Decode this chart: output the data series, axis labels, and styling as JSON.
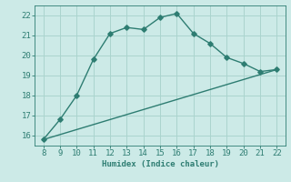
{
  "title": "",
  "xlabel": "Humidex (Indice chaleur)",
  "ylabel": "",
  "bg_color": "#cceae7",
  "line_color": "#2e7d72",
  "grid_color": "#aad4ce",
  "curve_x": [
    8,
    9,
    10,
    11,
    12,
    13,
    14,
    15,
    16,
    17,
    18,
    19,
    20,
    21,
    22
  ],
  "curve_y": [
    15.8,
    16.8,
    18.0,
    19.8,
    21.1,
    21.4,
    21.3,
    21.9,
    22.1,
    21.1,
    20.6,
    19.9,
    19.6,
    19.2,
    19.3
  ],
  "line_x": [
    8,
    22
  ],
  "line_y": [
    15.8,
    19.3
  ],
  "xlim": [
    7.5,
    22.5
  ],
  "ylim": [
    15.5,
    22.5
  ],
  "xticks": [
    8,
    9,
    10,
    11,
    12,
    13,
    14,
    15,
    16,
    17,
    18,
    19,
    20,
    21,
    22
  ],
  "yticks": [
    16,
    17,
    18,
    19,
    20,
    21,
    22
  ],
  "marker_size": 2.8,
  "line_width": 1.0,
  "font_size": 6.5
}
